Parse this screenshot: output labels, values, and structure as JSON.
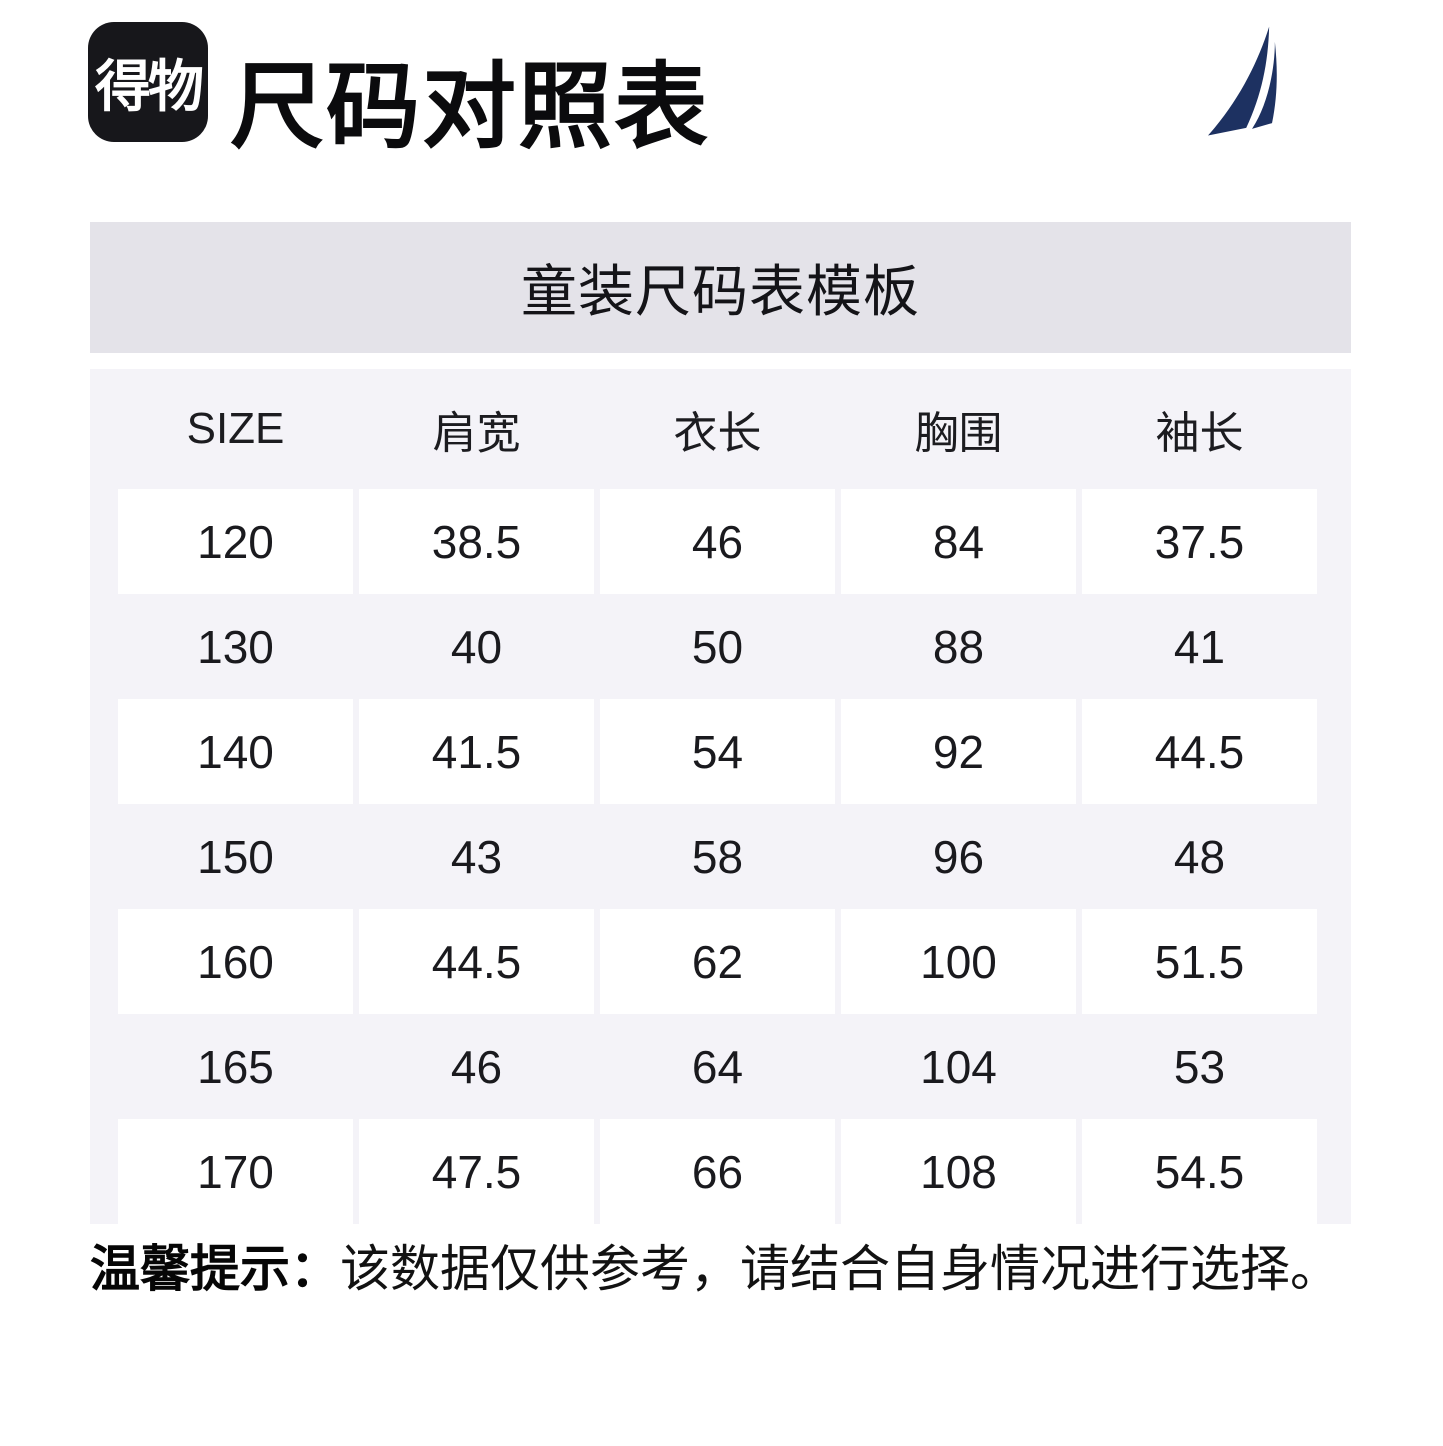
{
  "header": {
    "logo_text": "得物",
    "title": "尺码对照表"
  },
  "table": {
    "caption": "童装尺码表模板",
    "columns": [
      "SIZE",
      "肩宽",
      "衣长",
      "胸围",
      "袖长"
    ],
    "rows": [
      [
        "120",
        "38.5",
        "46",
        "84",
        "37.5"
      ],
      [
        "130",
        "40",
        "50",
        "88",
        "41"
      ],
      [
        "140",
        "41.5",
        "54",
        "92",
        "44.5"
      ],
      [
        "150",
        "43",
        "58",
        "96",
        "48"
      ],
      [
        "160",
        "44.5",
        "62",
        "100",
        "51.5"
      ],
      [
        "165",
        "46",
        "64",
        "104",
        "53"
      ],
      [
        "170",
        "47.5",
        "66",
        "108",
        "54.5"
      ]
    ]
  },
  "note": {
    "label": "温馨提示：",
    "text": "该数据仅供参考，请结合自身情况进行选择。"
  },
  "icons": {
    "sail": "sail-icon",
    "brand": "dewu-logo"
  },
  "colors": {
    "caption_band_bg": "#e4e3e9",
    "table_bg": "#f4f3f8",
    "cell_bg": "#ffffff",
    "sail_navy": "#1d3161",
    "logo_bg": "#17171b",
    "text": "#18181c"
  }
}
